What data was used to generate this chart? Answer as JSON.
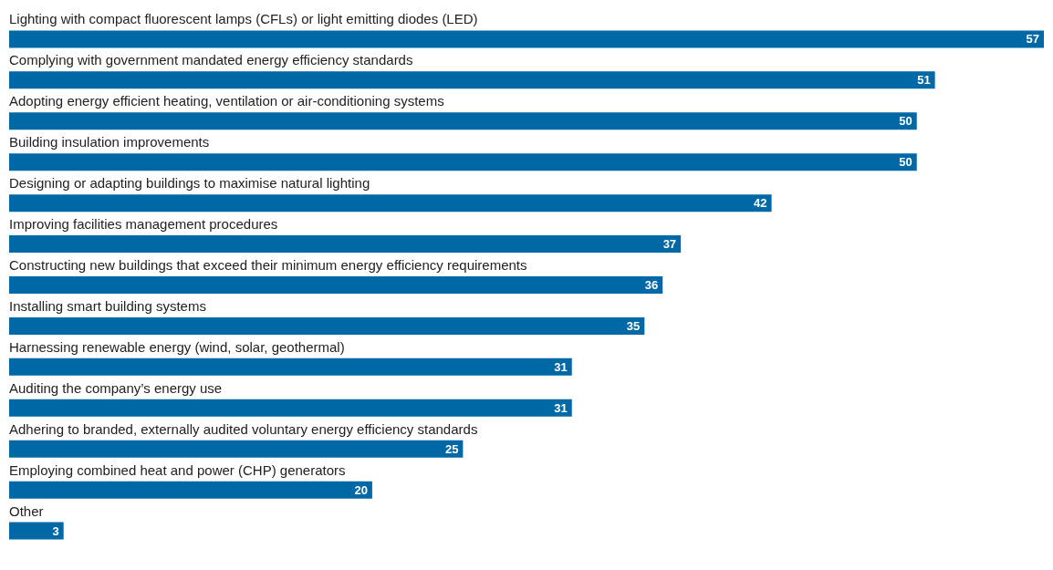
{
  "chart_data": {
    "type": "bar",
    "orientation": "horizontal",
    "data_labels": true,
    "color": "#0068a5",
    "categories": [
      "Lighting with compact fluorescent lamps (CFLs) or light emitting diodes (LED)",
      "Complying with government mandated energy efficiency standards",
      "Adopting energy efficient heating, ventilation or air-conditioning systems",
      "Building insulation improvements",
      "Designing or adapting buildings to maximise natural lighting",
      "Improving facilities management procedures",
      "Constructing new buildings that exceed their minimum energy efficiency requirements",
      "Installing smart building systems",
      "Harnessing renewable energy (wind, solar, geothermal)",
      "Auditing the company’s energy use",
      "Adhering to branded, externally audited voluntary energy efficiency standards",
      "Employing combined heat and power (CHP) generators",
      "Other"
    ],
    "values": [
      57,
      51,
      50,
      50,
      42,
      37,
      36,
      35,
      31,
      31,
      25,
      20,
      3
    ]
  }
}
